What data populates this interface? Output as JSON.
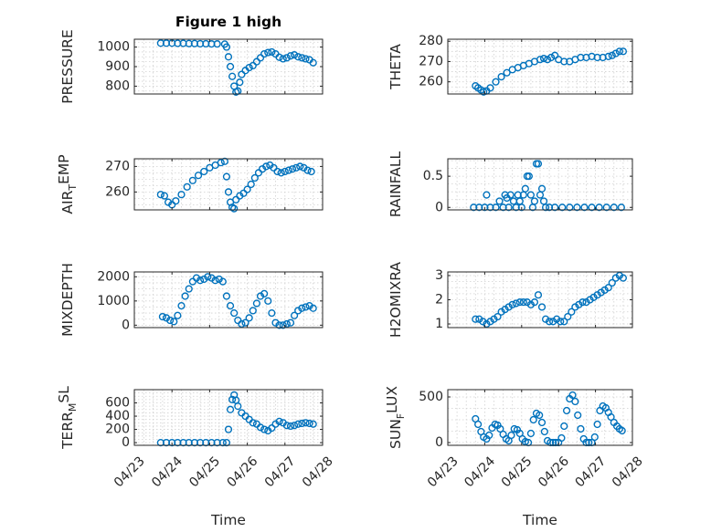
{
  "figure": {
    "title": "Figure 1 high"
  },
  "style": {
    "marker_color": "#0072BD",
    "axis_color": "#262626",
    "grid_color": "#d0d0d0"
  },
  "chart_data": [
    {
      "id": "pressure",
      "type": "scatter",
      "marker": "circle",
      "ylabel": "PRESSURE",
      "ylabel_sub": "",
      "ylabel_after": "",
      "xlabel": "",
      "title": "Figure 1 high",
      "xlim": [
        0,
        5
      ],
      "ylim": [
        760,
        1040
      ],
      "yticks": [
        800,
        900,
        1000
      ],
      "xticks": [
        0,
        1,
        2,
        3,
        4,
        5
      ],
      "xtick_labels": [],
      "grid": true,
      "x": [
        0.7,
        0.85,
        1.0,
        1.15,
        1.3,
        1.45,
        1.6,
        1.75,
        1.9,
        2.05,
        2.2,
        2.4,
        2.45,
        2.5,
        2.55,
        2.6,
        2.65,
        2.7,
        2.75,
        2.8,
        2.85,
        2.95,
        3.05,
        3.15,
        3.25,
        3.35,
        3.45,
        3.55,
        3.65,
        3.75,
        3.85,
        3.95,
        4.05,
        4.15,
        4.25,
        4.35,
        4.45,
        4.55,
        4.65,
        4.75
      ],
      "y": [
        1020,
        1020,
        1020,
        1019,
        1019,
        1018,
        1018,
        1017,
        1017,
        1016,
        1016,
        1015,
        1000,
        950,
        900,
        850,
        800,
        770,
        775,
        820,
        860,
        880,
        895,
        905,
        925,
        945,
        965,
        972,
        975,
        965,
        948,
        940,
        945,
        955,
        960,
        950,
        945,
        940,
        935,
        920
      ]
    },
    {
      "id": "theta",
      "type": "scatter",
      "marker": "circle",
      "ylabel": "THETA",
      "ylabel_sub": "",
      "ylabel_after": "",
      "xlabel": "",
      "xlim": [
        0,
        5
      ],
      "ylim": [
        254,
        281
      ],
      "yticks": [
        260,
        270,
        280
      ],
      "xticks": [
        0,
        1,
        2,
        3,
        4,
        5
      ],
      "xtick_labels": [],
      "grid": true,
      "x": [
        0.75,
        0.82,
        0.9,
        0.97,
        1.05,
        1.15,
        1.3,
        1.45,
        1.6,
        1.75,
        1.9,
        2.05,
        2.2,
        2.35,
        2.5,
        2.6,
        2.7,
        2.8,
        2.9,
        3.0,
        3.15,
        3.3,
        3.45,
        3.6,
        3.75,
        3.9,
        4.05,
        4.2,
        4.35,
        4.45,
        4.55,
        4.65,
        4.75
      ],
      "y": [
        258,
        257,
        256,
        255,
        255.5,
        257,
        260,
        262.5,
        264.5,
        266,
        267,
        268,
        269,
        270,
        271,
        271.5,
        271,
        272,
        273,
        271,
        270,
        270,
        271,
        272,
        272,
        272.5,
        272,
        272,
        272.5,
        273,
        274,
        275,
        275
      ]
    },
    {
      "id": "air_temp",
      "type": "scatter",
      "marker": "circle",
      "ylabel": "AIR",
      "ylabel_sub": "T",
      "ylabel_after": "EMP",
      "xlabel": "",
      "xlim": [
        0,
        5
      ],
      "ylim": [
        253,
        273
      ],
      "yticks": [
        260,
        270
      ],
      "xticks": [
        0,
        1,
        2,
        3,
        4,
        5
      ],
      "xtick_labels": [],
      "grid": true,
      "x": [
        0.7,
        0.8,
        0.9,
        1.0,
        1.1,
        1.25,
        1.4,
        1.55,
        1.7,
        1.85,
        2.0,
        2.15,
        2.3,
        2.4,
        2.45,
        2.5,
        2.55,
        2.6,
        2.65,
        2.7,
        2.8,
        2.9,
        3.0,
        3.1,
        3.2,
        3.3,
        3.4,
        3.5,
        3.6,
        3.7,
        3.8,
        3.9,
        4.0,
        4.1,
        4.2,
        4.3,
        4.4,
        4.5,
        4.6,
        4.7
      ],
      "y": [
        259,
        258.5,
        256,
        255,
        256.5,
        259,
        262,
        264.5,
        266.5,
        268,
        269.5,
        270.5,
        271.5,
        272,
        266,
        260,
        256,
        254,
        253.5,
        257,
        258.5,
        259.5,
        261,
        263,
        265.5,
        267.5,
        269,
        270,
        270.5,
        269.5,
        268,
        267.5,
        268,
        268.5,
        269,
        269.5,
        270,
        269.5,
        268.5,
        268
      ]
    },
    {
      "id": "rainfall",
      "type": "scatter",
      "marker": "circle",
      "ylabel": "RAINFALL",
      "ylabel_sub": "",
      "ylabel_after": "",
      "xlabel": "",
      "xlim": [
        0,
        5
      ],
      "ylim": [
        -0.04,
        0.78
      ],
      "yticks": [
        0,
        0.5
      ],
      "xticks": [
        0,
        1,
        2,
        3,
        4,
        5
      ],
      "xtick_labels": [],
      "grid": true,
      "x": [
        0.7,
        0.85,
        1.0,
        1.05,
        1.15,
        1.3,
        1.4,
        1.5,
        1.55,
        1.6,
        1.65,
        1.7,
        1.78,
        1.85,
        1.9,
        1.95,
        2.0,
        2.05,
        2.1,
        2.15,
        2.2,
        2.25,
        2.3,
        2.35,
        2.4,
        2.45,
        2.5,
        2.55,
        2.6,
        2.65,
        2.75,
        2.9,
        3.1,
        3.3,
        3.5,
        3.7,
        3.9,
        4.1,
        4.3,
        4.5,
        4.7
      ],
      "y": [
        0,
        0,
        0,
        0.2,
        0,
        0,
        0.1,
        0,
        0.2,
        0.15,
        0,
        0.2,
        0.1,
        0,
        0.2,
        0.1,
        0,
        0.2,
        0.3,
        0.5,
        0.5,
        0.2,
        0,
        0.1,
        0.7,
        0.7,
        0.2,
        0.3,
        0.1,
        0,
        0,
        0,
        0,
        0,
        0,
        0,
        0,
        0,
        0,
        0,
        0
      ]
    },
    {
      "id": "mixdepth",
      "type": "scatter",
      "marker": "circle",
      "ylabel": "MIXDEPTH",
      "ylabel_sub": "",
      "ylabel_after": "",
      "xlabel": "",
      "xlim": [
        0,
        5
      ],
      "ylim": [
        -100,
        2200
      ],
      "yticks": [
        0,
        1000,
        2000
      ],
      "xticks": [
        0,
        1,
        2,
        3,
        4,
        5
      ],
      "xtick_labels": [],
      "grid": true,
      "x": [
        0.75,
        0.85,
        0.95,
        1.05,
        1.15,
        1.25,
        1.35,
        1.45,
        1.55,
        1.65,
        1.75,
        1.85,
        1.95,
        2.05,
        2.15,
        2.25,
        2.35,
        2.45,
        2.55,
        2.65,
        2.75,
        2.85,
        2.95,
        3.05,
        3.15,
        3.25,
        3.35,
        3.45,
        3.55,
        3.65,
        3.75,
        3.85,
        3.95,
        4.05,
        4.15,
        4.25,
        4.35,
        4.45,
        4.55,
        4.65,
        4.75
      ],
      "y": [
        350,
        300,
        200,
        150,
        400,
        800,
        1200,
        1500,
        1800,
        1950,
        1850,
        1900,
        2000,
        1950,
        1850,
        1900,
        1800,
        1200,
        800,
        500,
        200,
        50,
        100,
        300,
        600,
        900,
        1200,
        1300,
        1000,
        500,
        100,
        0,
        0,
        50,
        100,
        400,
        600,
        700,
        750,
        800,
        700
      ]
    },
    {
      "id": "h2omixra",
      "type": "scatter",
      "marker": "circle",
      "ylabel": "H2OMIXRA",
      "ylabel_sub": "",
      "ylabel_after": "",
      "xlabel": "",
      "xlim": [
        0,
        5
      ],
      "ylim": [
        0.85,
        3.15
      ],
      "yticks": [
        1,
        2,
        3
      ],
      "xticks": [
        0,
        1,
        2,
        3,
        4,
        5
      ],
      "xtick_labels": [],
      "grid": true,
      "x": [
        0.75,
        0.85,
        0.95,
        1.05,
        1.15,
        1.25,
        1.35,
        1.45,
        1.55,
        1.65,
        1.75,
        1.85,
        1.95,
        2.05,
        2.15,
        2.25,
        2.35,
        2.45,
        2.55,
        2.65,
        2.75,
        2.85,
        2.95,
        3.05,
        3.15,
        3.25,
        3.35,
        3.45,
        3.55,
        3.65,
        3.75,
        3.85,
        3.95,
        4.05,
        4.15,
        4.25,
        4.35,
        4.45,
        4.55,
        4.65,
        4.75
      ],
      "y": [
        1.2,
        1.2,
        1.1,
        1.0,
        1.1,
        1.2,
        1.3,
        1.5,
        1.6,
        1.7,
        1.8,
        1.85,
        1.9,
        1.9,
        1.9,
        1.8,
        1.9,
        2.2,
        1.7,
        1.2,
        1.1,
        1.1,
        1.2,
        1.1,
        1.1,
        1.3,
        1.5,
        1.7,
        1.8,
        1.9,
        1.9,
        2.0,
        2.1,
        2.2,
        2.3,
        2.4,
        2.5,
        2.7,
        2.9,
        3.0,
        2.9
      ]
    },
    {
      "id": "terr_msl",
      "type": "scatter",
      "marker": "circle",
      "ylabel": "TERR",
      "ylabel_sub": "M",
      "ylabel_after": "SL",
      "xlabel": "Time",
      "xlim": [
        0,
        5
      ],
      "ylim": [
        -40,
        800
      ],
      "yticks": [
        0,
        200,
        400,
        600
      ],
      "ytick_labels": [
        "0",
        "200",
        "400",
        "600"
      ],
      "xticks": [
        0,
        1,
        2,
        3,
        4,
        5
      ],
      "xtick_labels": [
        "04/23",
        "04/24",
        "04/25",
        "04/26",
        "04/27",
        "04/28"
      ],
      "grid": true,
      "x": [
        0.7,
        0.85,
        1.0,
        1.15,
        1.3,
        1.45,
        1.6,
        1.75,
        1.9,
        2.05,
        2.2,
        2.35,
        2.45,
        2.5,
        2.55,
        2.6,
        2.65,
        2.7,
        2.75,
        2.85,
        2.95,
        3.05,
        3.15,
        3.25,
        3.35,
        3.45,
        3.55,
        3.65,
        3.75,
        3.85,
        3.95,
        4.05,
        4.15,
        4.25,
        4.35,
        4.45,
        4.55,
        4.65,
        4.75
      ],
      "y": [
        0,
        0,
        0,
        0,
        0,
        0,
        0,
        0,
        0,
        0,
        0,
        0,
        0,
        200,
        500,
        650,
        720,
        640,
        550,
        450,
        400,
        350,
        300,
        280,
        230,
        200,
        180,
        220,
        280,
        320,
        300,
        260,
        250,
        260,
        280,
        290,
        300,
        290,
        280
      ]
    },
    {
      "id": "sun_flux",
      "type": "scatter",
      "marker": "circle",
      "ylabel": "SUN",
      "ylabel_sub": "F",
      "ylabel_after": "LUX",
      "xlabel": "Time",
      "xlim": [
        0,
        5
      ],
      "ylim": [
        -30,
        580
      ],
      "yticks": [
        0,
        500
      ],
      "ytick_labels": [
        "0",
        "500"
      ],
      "xticks": [
        0,
        1,
        2,
        3,
        4,
        5
      ],
      "xtick_labels": [
        "04/23",
        "04/24",
        "04/25",
        "04/26",
        "04/27",
        "04/28"
      ],
      "grid": true,
      "x": [
        0.75,
        0.82,
        0.9,
        0.97,
        1.05,
        1.12,
        1.2,
        1.28,
        1.35,
        1.42,
        1.5,
        1.58,
        1.65,
        1.72,
        1.8,
        1.88,
        1.95,
        2.02,
        2.1,
        2.18,
        2.25,
        2.32,
        2.4,
        2.48,
        2.55,
        2.62,
        2.7,
        2.78,
        2.85,
        2.92,
        3.0,
        3.08,
        3.15,
        3.22,
        3.3,
        3.38,
        3.45,
        3.52,
        3.6,
        3.68,
        3.75,
        3.82,
        3.9,
        3.98,
        4.05,
        4.12,
        4.2,
        4.28,
        4.35,
        4.42,
        4.5,
        4.58,
        4.65,
        4.72
      ],
      "y": [
        260,
        200,
        120,
        60,
        40,
        80,
        160,
        200,
        190,
        150,
        90,
        40,
        20,
        80,
        150,
        140,
        100,
        40,
        10,
        0,
        100,
        250,
        320,
        300,
        220,
        120,
        20,
        0,
        0,
        0,
        0,
        50,
        180,
        350,
        480,
        520,
        450,
        300,
        150,
        40,
        0,
        0,
        0,
        60,
        200,
        350,
        400,
        380,
        330,
        280,
        220,
        180,
        150,
        130
      ]
    }
  ]
}
